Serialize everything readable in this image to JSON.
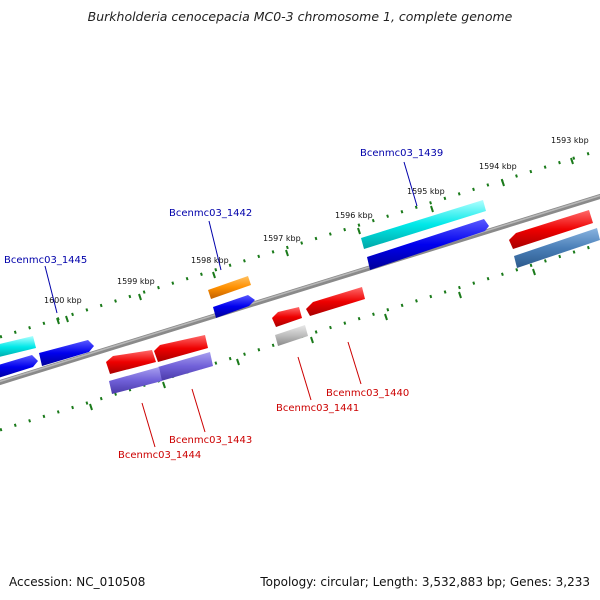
{
  "title": "Burkholderia cenocepacia MC0-3 chromosome 1, complete genome",
  "footer": {
    "accession": "Accession: NC_010508",
    "summary": "Topology: circular; Length: 3,532,883 bp; Genes: 3,233"
  },
  "colors": {
    "forward_label": "#0000aa",
    "reverse_label": "#cc0000",
    "backbone": "#808080",
    "tick": "#1a7a1a"
  },
  "kbp_labels": [
    "1593 kbp",
    "1594 kbp",
    "1595 kbp",
    "1596 kbp",
    "1597 kbp",
    "1598 kbp",
    "1599 kbp",
    "1600 kbp"
  ],
  "gene_labels": {
    "forward": [
      "Bcenmc03_1439",
      "Bcenmc03_1442",
      "Bcenmc03_1445"
    ],
    "reverse": [
      "Bcenmc03_1440",
      "Bcenmc03_1441",
      "Bcenmc03_1443",
      "Bcenmc03_1444"
    ]
  }
}
